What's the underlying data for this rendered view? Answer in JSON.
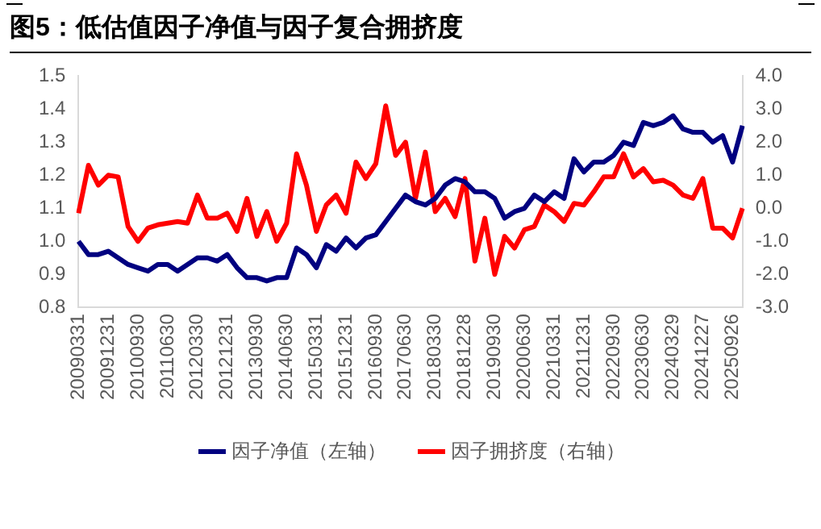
{
  "chart_data": {
    "type": "line",
    "title": "图5：低估值因子净值与因子复合拥挤度",
    "categories": [
      "20090331",
      null,
      null,
      "20091231",
      null,
      null,
      "20100930",
      null,
      null,
      "20110630",
      null,
      null,
      "20120330",
      null,
      null,
      "20121231",
      null,
      null,
      "20130930",
      null,
      null,
      "20140630",
      null,
      null,
      "20150331",
      null,
      null,
      "20151231",
      null,
      null,
      "20160930",
      null,
      null,
      "20170630",
      null,
      null,
      "20180330",
      null,
      null,
      "20181228",
      null,
      null,
      "20190930",
      null,
      null,
      "20200630",
      null,
      null,
      "20210331",
      null,
      null,
      "20211231",
      null,
      null,
      "20220930",
      null,
      null,
      "20230630",
      null,
      null,
      "20240329",
      null,
      null,
      "20241227",
      null,
      null,
      "20250926",
      null
    ],
    "series": [
      {
        "name": "因子净值（左轴）",
        "color": "#000080",
        "values": [
          1.0,
          0.96,
          0.96,
          0.97,
          0.95,
          0.93,
          0.92,
          0.91,
          0.93,
          0.93,
          0.91,
          0.93,
          0.95,
          0.95,
          0.94,
          0.96,
          0.92,
          0.89,
          0.89,
          0.88,
          0.89,
          0.89,
          0.98,
          0.96,
          0.92,
          0.99,
          0.97,
          1.01,
          0.98,
          1.01,
          1.02,
          1.06,
          1.1,
          1.14,
          1.12,
          1.11,
          1.13,
          1.17,
          1.19,
          1.18,
          1.15,
          1.15,
          1.13,
          1.07,
          1.09,
          1.1,
          1.14,
          1.12,
          1.15,
          1.13,
          1.25,
          1.21,
          1.24,
          1.24,
          1.26,
          1.3,
          1.29,
          1.36,
          1.35,
          1.36,
          1.38,
          1.34,
          1.33,
          1.33,
          1.3,
          1.32,
          1.24,
          1.35
        ]
      },
      {
        "name": "因子拥挤度（右轴）",
        "color": "#ff0000",
        "axis": "y2",
        "values": [
          -0.15,
          1.3,
          0.7,
          1.0,
          0.95,
          -0.55,
          -1.0,
          -0.6,
          -0.5,
          -0.45,
          -0.4,
          -0.45,
          0.4,
          -0.3,
          -0.3,
          -0.15,
          -0.7,
          0.3,
          -0.85,
          -0.1,
          -1.0,
          -0.45,
          1.65,
          0.7,
          -0.7,
          0.1,
          0.4,
          -0.15,
          1.4,
          0.9,
          1.35,
          3.1,
          1.6,
          2.0,
          0.3,
          1.7,
          -0.1,
          0.3,
          -0.25,
          0.9,
          -1.6,
          -0.3,
          -2.0,
          -0.85,
          -1.2,
          -0.65,
          -0.55,
          0.1,
          -0.1,
          -0.4,
          0.15,
          0.1,
          0.5,
          0.95,
          0.95,
          1.65,
          0.95,
          1.2,
          0.8,
          0.85,
          0.7,
          0.4,
          0.3,
          0.9,
          -0.6,
          -0.6,
          -0.9,
          0.0
        ]
      }
    ],
    "ylim": [
      0.8,
      1.5
    ],
    "yticks": [
      {
        "value": 0.8,
        "label": "0.8"
      },
      {
        "value": 0.9,
        "label": "0.9"
      },
      {
        "value": 1,
        "label": "1.0"
      },
      {
        "value": 1.1,
        "label": "1.1"
      },
      {
        "value": 1.2,
        "label": "1.2"
      },
      {
        "value": 1.3,
        "label": "1.3"
      },
      {
        "value": 1.4,
        "label": "1.4"
      },
      {
        "value": 1.5,
        "label": "1.5"
      }
    ],
    "y2lim": [
      -3,
      4
    ],
    "y2ticks": [
      {
        "value": -3,
        "label": "-3.0"
      },
      {
        "value": -2,
        "label": "-2.0"
      },
      {
        "value": -1,
        "label": "-1.0"
      },
      {
        "value": 0,
        "label": "0.0"
      },
      {
        "value": 1,
        "label": "1.0"
      },
      {
        "value": 2,
        "label": "2.0"
      },
      {
        "value": 3,
        "label": "3.0"
      },
      {
        "value": 4,
        "label": "4.0"
      }
    ],
    "grid": false,
    "legend": "bottom",
    "marker": "none",
    "line_style": "solid"
  }
}
